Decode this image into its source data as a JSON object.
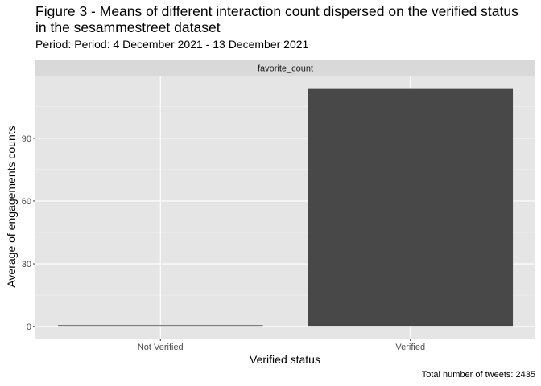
{
  "chart_data": {
    "type": "bar",
    "title": "Figure 3 - Means of different interaction count dispersed on the verified status in the sesammestreet dataset",
    "subtitle": "Period: Period: 4 December 2021 - 13 December 2021",
    "caption": "Total number of tweets: 2435",
    "facet_label": "favorite_count",
    "xlabel": "Verified status",
    "ylabel": "Average of engagements counts",
    "categories": [
      "Not Verified",
      "Verified"
    ],
    "values": [
      0.7,
      113.5
    ],
    "ylim": [
      -5.7,
      119.5
    ],
    "yticks": [
      0,
      30,
      60,
      90
    ],
    "grid": true,
    "colors": {
      "bar": "#484848",
      "panel": "#e5e5e5",
      "strip": "#d9d9d9",
      "grid_major": "#ffffff",
      "grid_minor": "#f2f2f2"
    }
  }
}
